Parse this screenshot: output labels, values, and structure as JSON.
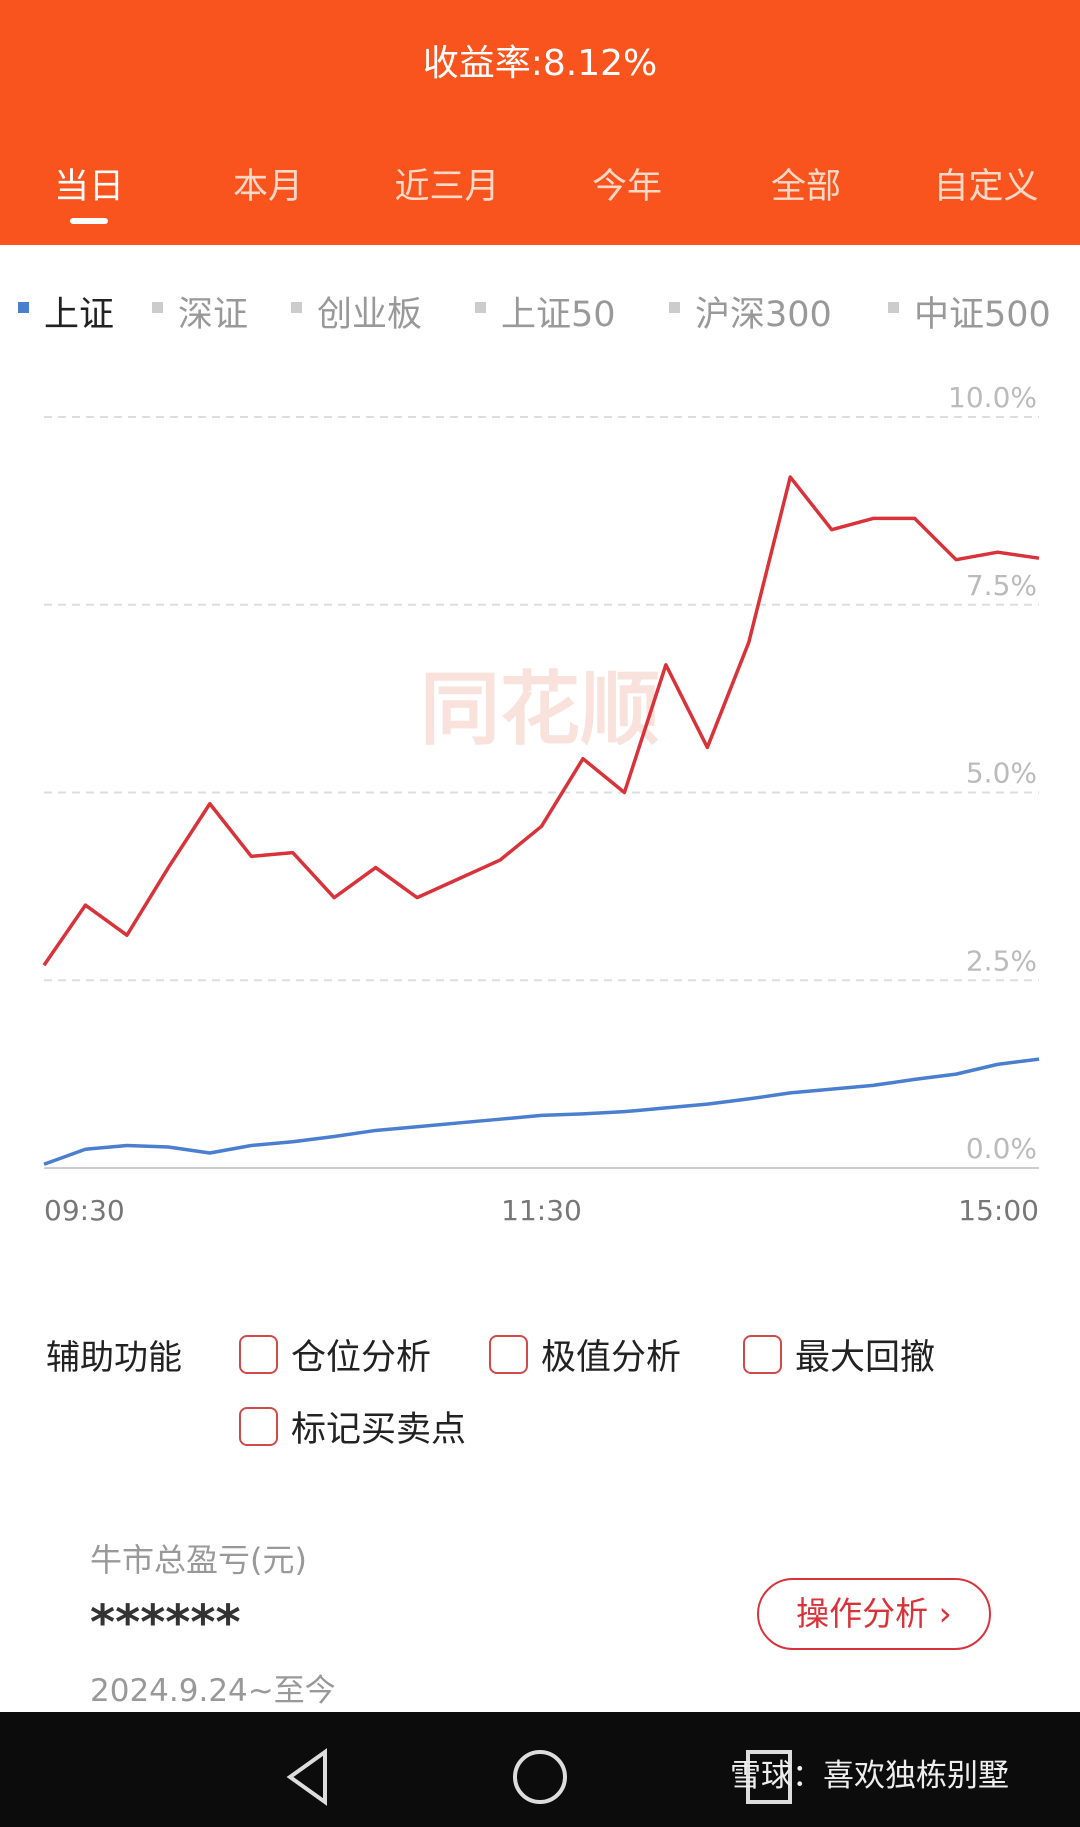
{
  "header": {
    "title": "收益率:8.12%",
    "tabs": [
      "当日",
      "本月",
      "近三月",
      "今年",
      "全部",
      "自定义"
    ]
  },
  "index_tabs": [
    "上证",
    "深证",
    "创业板",
    "上证50",
    "沪深300",
    "中证500"
  ],
  "chart_data": {
    "type": "line",
    "x": [
      0,
      10,
      20,
      30,
      40,
      50,
      60,
      70,
      80,
      90,
      100,
      110,
      120,
      130,
      140,
      150,
      160,
      170,
      180,
      190,
      200,
      210,
      220,
      230,
      240
    ],
    "xlim": [
      0,
      240
    ],
    "xticks": [
      {
        "value": 0,
        "label": "09:30"
      },
      {
        "value": 120,
        "label": "11:30"
      },
      {
        "value": 240,
        "label": "15:00"
      }
    ],
    "ylim": [
      0,
      10
    ],
    "yticks": [
      {
        "value": 0,
        "label": "0.0%"
      },
      {
        "value": 2.5,
        "label": "2.5%"
      },
      {
        "value": 5,
        "label": "5.0%"
      },
      {
        "value": 7.5,
        "label": "7.5%"
      },
      {
        "value": 10,
        "label": "10.0%"
      }
    ],
    "grid": true,
    "series": [
      {
        "color": "#d8333a",
        "values": [
          2.7,
          3.5,
          3.1,
          4.0,
          4.85,
          4.15,
          4.2,
          3.6,
          4.0,
          3.6,
          3.85,
          4.1,
          4.55,
          5.45,
          5.0,
          6.7,
          5.6,
          7.0,
          9.2,
          8.5,
          8.65,
          8.65,
          8.1,
          8.2,
          8.12
        ]
      },
      {
        "color": "#4a7fcf",
        "values": [
          0.05,
          0.25,
          0.3,
          0.28,
          0.2,
          0.3,
          0.35,
          0.42,
          0.5,
          0.55,
          0.6,
          0.65,
          0.7,
          0.72,
          0.75,
          0.8,
          0.85,
          0.92,
          1.0,
          1.05,
          1.1,
          1.18,
          1.25,
          1.38,
          1.45
        ]
      }
    ]
  },
  "tools": {
    "label": "辅助功能",
    "options": [
      "仓位分析",
      "极值分析",
      "最大回撤",
      "标记买卖点"
    ]
  },
  "summary": {
    "label": "牛市总盈亏(元)",
    "value": "******",
    "period": "2024.9.24~至今",
    "button": "操作分析 ›"
  },
  "watermark": "雪球：喜欢独栋别墅"
}
